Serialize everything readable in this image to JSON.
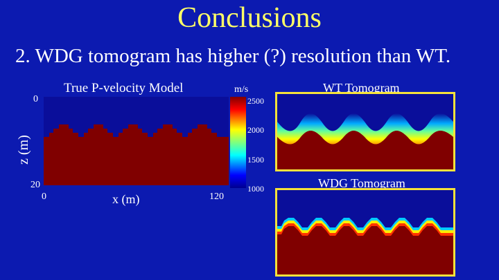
{
  "slide": {
    "title": "Conclusions",
    "point": "2. WDG tomogram has higher (?) resolution than WT."
  },
  "model": {
    "title": "True P-velocity Model",
    "x_axis_label": "x (m)",
    "z_axis_label": "z (m)",
    "x_ticks": [
      "0",
      "120"
    ],
    "z_ticks": [
      "0",
      "20"
    ]
  },
  "colorbar": {
    "unit": "m/s",
    "ticks": [
      "2500",
      "2000",
      "1500",
      "1000"
    ]
  },
  "wt": {
    "title": "WT Tomogram"
  },
  "wdg": {
    "title": "WDG Tomogram"
  },
  "colors": {
    "background": "#0c1ab0",
    "title": "#ffff66",
    "frame": "#f5e23a",
    "low_velocity": "#0a0e9a",
    "high_velocity": "#800000"
  }
}
